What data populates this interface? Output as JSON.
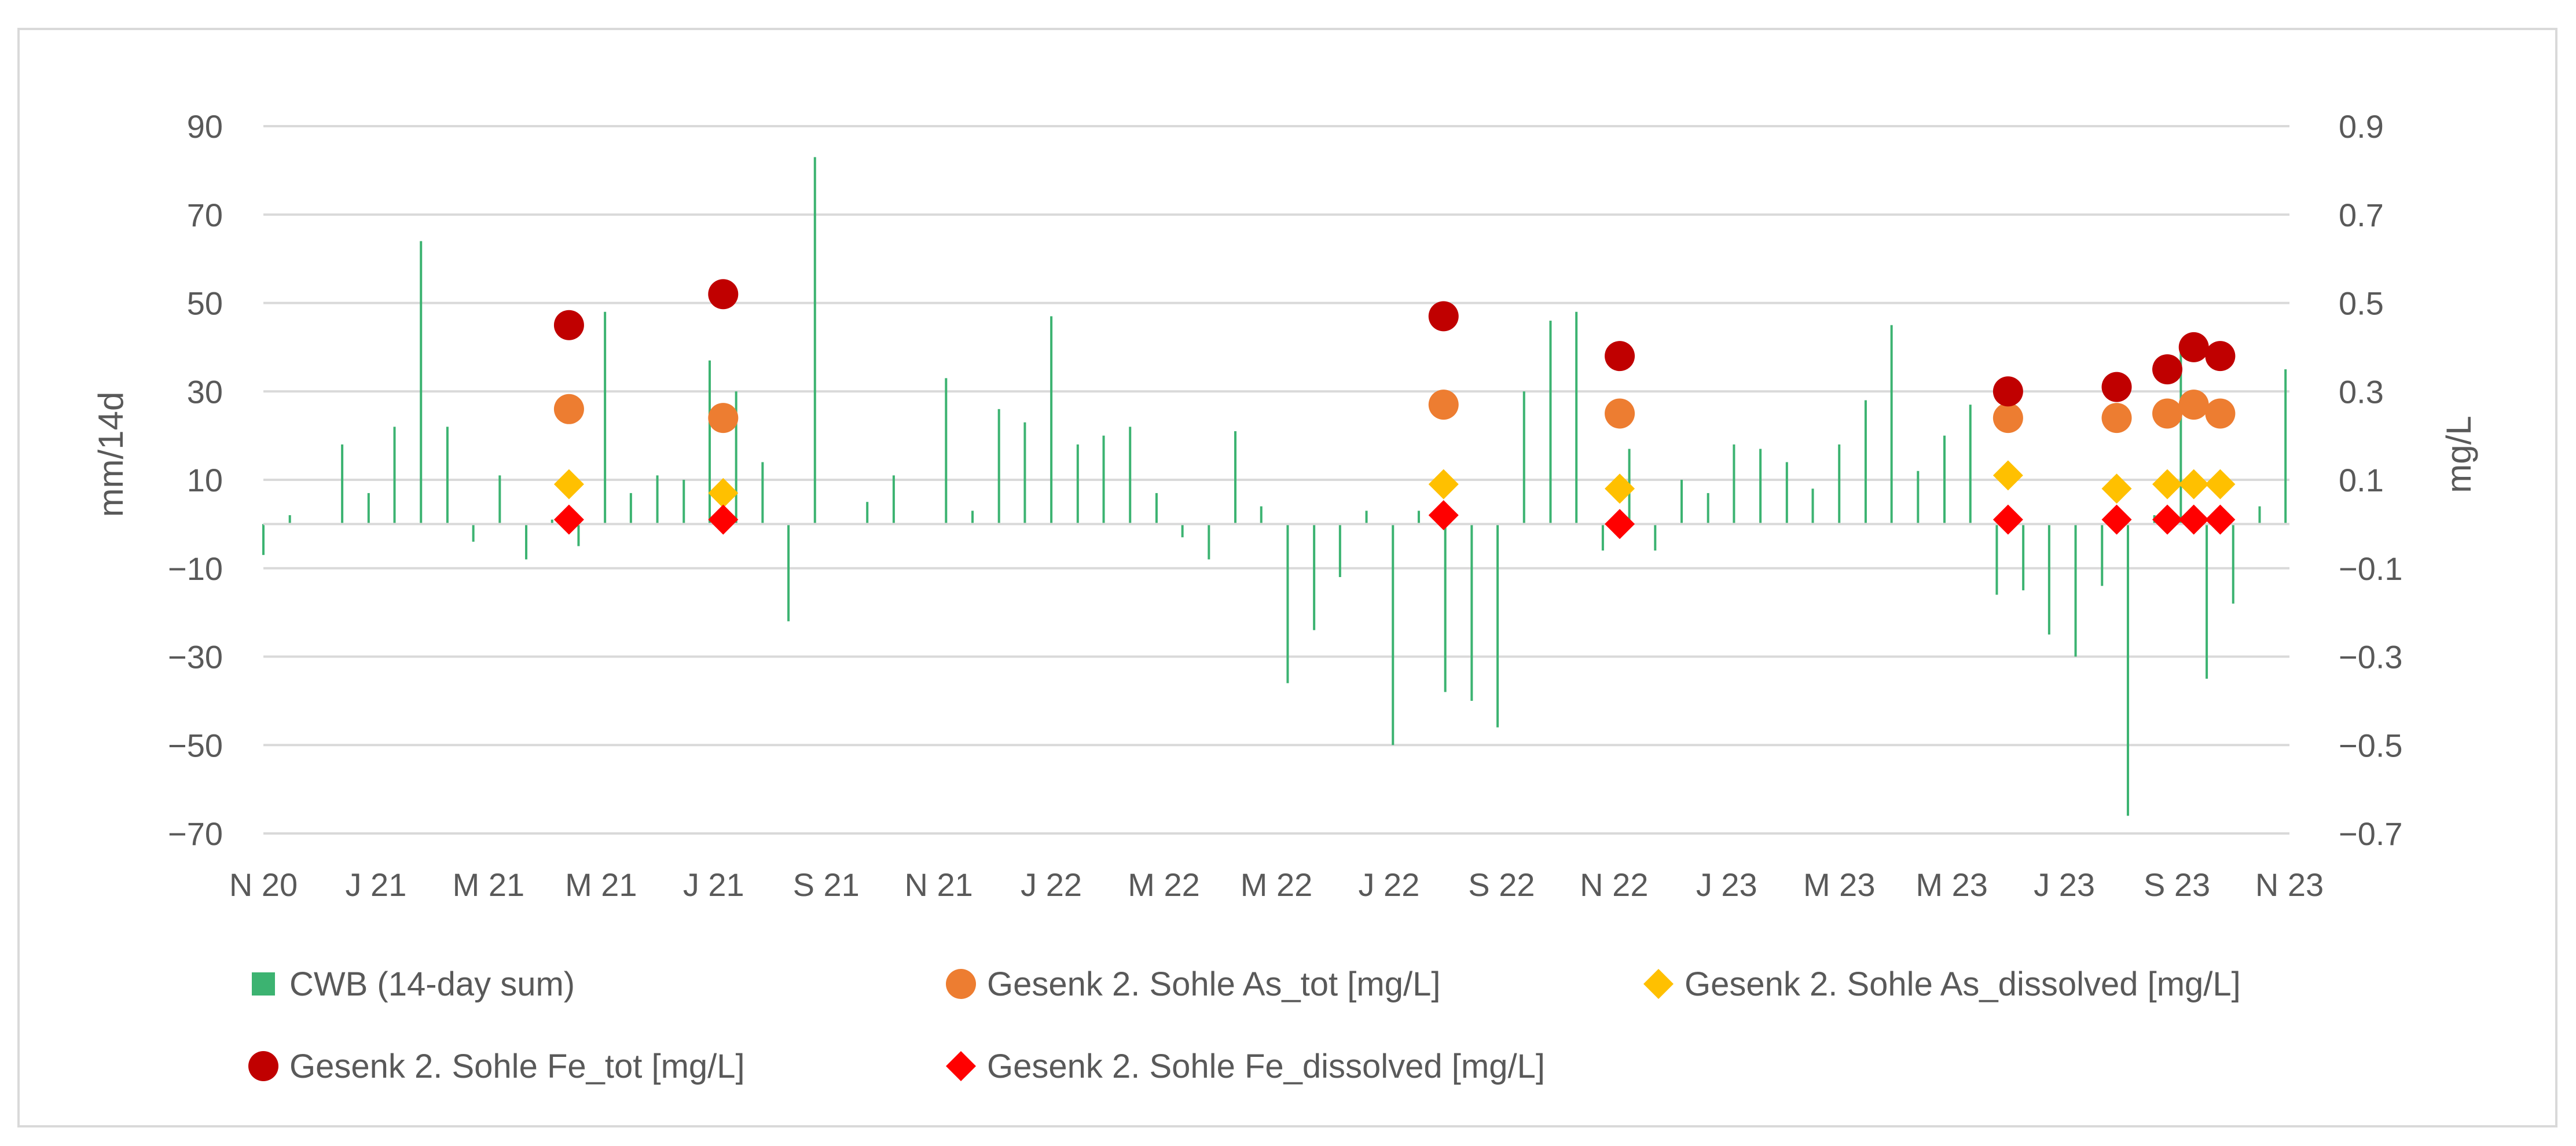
{
  "chart_data": {
    "type": "bar+scatter",
    "title": "",
    "ylabel": "mm/14d",
    "y2label": "mg/L",
    "ylim": [
      -70,
      90
    ],
    "y2lim": [
      -0.7,
      0.9
    ],
    "yticks": [
      90,
      70,
      50,
      30,
      10,
      -10,
      -30,
      -50,
      -70
    ],
    "yticks_labels": [
      "90",
      "70",
      "50",
      "30",
      "10",
      "−10",
      "−30",
      "−50",
      "−70"
    ],
    "y2ticks_labels": [
      "0.9",
      "0.7",
      "0.5",
      "0.3",
      "0.1",
      "−0.1",
      "−0.3",
      "−0.5",
      "−0.7"
    ],
    "xticks": [
      "N 20",
      "J 21",
      "M 21",
      "M 21",
      "J 21",
      "S 21",
      "N 21",
      "J 22",
      "M 22",
      "M 22",
      "J 22",
      "S 22",
      "N 22",
      "J 23",
      "M 23",
      "M 23",
      "J 23",
      "S 23",
      "N 23"
    ],
    "x_range_months": [
      0,
      36
    ],
    "grid": true,
    "legend_position": "bottom",
    "series": [
      {
        "name": "CWB (14-day sum)",
        "kind": "bar",
        "axis": "left",
        "color": "#3cb371",
        "x_months": [
          0.0,
          0.47,
          0.93,
          1.4,
          1.87,
          2.33,
          2.8,
          3.27,
          3.73,
          4.2,
          4.67,
          5.13,
          5.6,
          6.07,
          6.53,
          7.0,
          7.47,
          7.93,
          8.4,
          8.87,
          9.33,
          9.8,
          10.27,
          10.73,
          11.2,
          11.67,
          12.13,
          12.6,
          13.07,
          13.53,
          14.0,
          14.47,
          14.93,
          15.4,
          15.87,
          16.33,
          16.8,
          17.27,
          17.73,
          18.2,
          18.67,
          19.13,
          19.6,
          20.07,
          20.53,
          21.0,
          21.47,
          21.93,
          22.4,
          22.87,
          23.33,
          23.8,
          24.27,
          24.73,
          25.2,
          25.67,
          26.13,
          26.6,
          27.07,
          27.53,
          28.0,
          28.47,
          28.93,
          29.4,
          29.87,
          30.33,
          30.8,
          31.27,
          31.73,
          32.2,
          32.67,
          33.13,
          33.6,
          34.07,
          34.53,
          35.0,
          35.47,
          35.93
        ],
        "values": [
          -7,
          2,
          0,
          18,
          7,
          22,
          64,
          22,
          -4,
          11,
          -8,
          1,
          -5,
          48,
          7,
          11,
          10,
          37,
          30,
          14,
          -22,
          83,
          0,
          5,
          11,
          0,
          33,
          3,
          26,
          23,
          47,
          18,
          20,
          22,
          7,
          -3,
          -8,
          21,
          4,
          -36,
          -24,
          -12,
          3,
          -50,
          3,
          -38,
          -40,
          -46,
          30,
          46,
          48,
          -6,
          17,
          -6,
          10,
          7,
          18,
          17,
          14,
          8,
          18,
          28,
          45,
          12,
          20,
          27,
          -16,
          -15,
          -25,
          -30,
          -14,
          -66,
          2,
          40,
          -35,
          -18,
          4,
          35
        ],
        "note": "approximate readings of the 14-day climatic water balance bars"
      },
      {
        "name": "Gesenk 2. Sohle As_tot [mg/L]",
        "kind": "circle",
        "axis": "right",
        "color": "#ed7d31",
        "x_months": [
          5.43,
          8.17,
          20.97,
          24.1,
          31.0,
          32.93,
          33.83,
          34.3,
          34.77
        ],
        "values": [
          0.26,
          0.24,
          0.27,
          0.25,
          0.24,
          0.24,
          0.25,
          0.27,
          0.25
        ]
      },
      {
        "name": "Gesenk 2. Sohle As_dissolved [mg/L]",
        "kind": "diamond",
        "axis": "right",
        "color": "#ffc000",
        "x_months": [
          5.43,
          8.17,
          20.97,
          24.1,
          31.0,
          32.93,
          33.83,
          34.3,
          34.77
        ],
        "values": [
          0.09,
          0.07,
          0.09,
          0.08,
          0.11,
          0.08,
          0.09,
          0.09,
          0.09
        ]
      },
      {
        "name": "Gesenk 2. Sohle Fe_tot [mg/L]",
        "kind": "circle",
        "axis": "right",
        "color": "#c00000",
        "x_months": [
          5.43,
          8.17,
          20.97,
          24.1,
          31.0,
          32.93,
          33.83,
          34.3,
          34.77
        ],
        "values": [
          0.45,
          0.52,
          0.47,
          0.38,
          0.3,
          0.31,
          0.35,
          0.4,
          0.38
        ]
      },
      {
        "name": "Gesenk 2. Sohle Fe_dissolved [mg/L]",
        "kind": "diamond",
        "axis": "right",
        "color": "#ff0000",
        "x_months": [
          5.43,
          8.17,
          20.97,
          24.1,
          31.0,
          32.93,
          33.83,
          34.3,
          34.77
        ],
        "values": [
          0.01,
          0.01,
          0.02,
          0.0,
          0.01,
          0.01,
          0.01,
          0.01,
          0.01
        ]
      }
    ]
  }
}
